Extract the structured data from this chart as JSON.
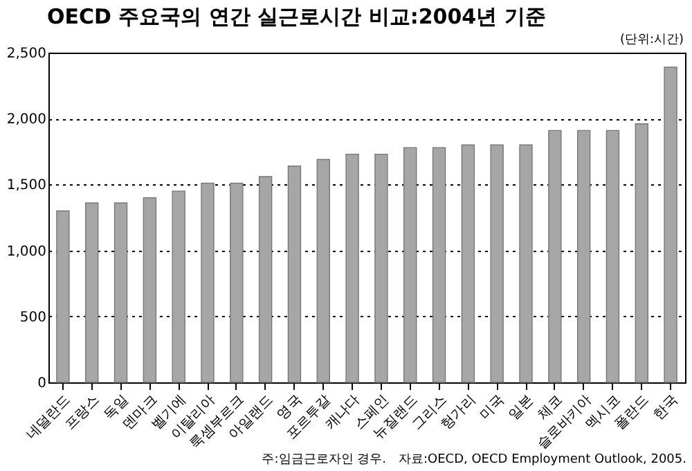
{
  "chart_data": {
    "type": "bar",
    "title": "OECD 주요국의 연간 실근로시간 비교:2004년 기준",
    "categories": [
      "네덜란드",
      "프랑스",
      "독일",
      "덴마크",
      "벨기에",
      "이탈리아",
      "룩셈부르크",
      "아일랜드",
      "영국",
      "포르투갈",
      "캐나다",
      "스페인",
      "뉴질랜드",
      "그리스",
      "헝가리",
      "미국",
      "일본",
      "체코",
      "슬로바키아",
      "멕시코",
      "폴란드",
      "한국"
    ],
    "values": [
      1300,
      1360,
      1360,
      1400,
      1450,
      1510,
      1510,
      1560,
      1640,
      1690,
      1730,
      1730,
      1780,
      1780,
      1800,
      1800,
      1800,
      1910,
      1910,
      1910,
      1960,
      2390
    ],
    "color": "#a6a6a6",
    "ylim": [
      0,
      2500
    ],
    "yticks": [
      0,
      {
        "value": 500,
        "label": "500"
      },
      {
        "value": 1000,
        "label": "1,000"
      },
      {
        "value": 1500,
        "label": "1,500"
      },
      {
        "value": 2000,
        "label": "2,000"
      },
      {
        "value": 2500,
        "label": "2,500"
      }
    ],
    "grid": "y",
    "annotations": [
      "(단위:시간)",
      "주:임금근로자인 경우.",
      "자료:OECD, OECD Employment Outlook, 2005."
    ]
  }
}
